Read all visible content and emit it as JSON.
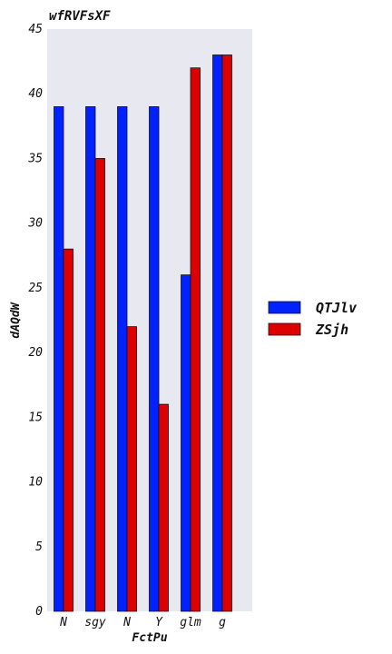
{
  "chart_data": {
    "type": "bar",
    "title": "wfRVFsXF",
    "xlabel": "FctPu",
    "ylabel": "dAQdW",
    "categories": [
      "N",
      "sgy",
      "N",
      "Y",
      "glm",
      "g"
    ],
    "series": [
      {
        "name": "QTJlv",
        "color": "#0022ff",
        "values": [
          39,
          39,
          39,
          39,
          26,
          43
        ]
      },
      {
        "name": "ZSjh",
        "color": "#dd0000",
        "values": [
          28,
          35,
          22,
          16,
          42,
          43
        ]
      }
    ],
    "ylim": [
      0,
      45
    ],
    "yticks": [
      0,
      5,
      10,
      15,
      20,
      25,
      30,
      35,
      40,
      45
    ],
    "grid": false,
    "legend_position": "right",
    "background": "#e8e8f1"
  }
}
